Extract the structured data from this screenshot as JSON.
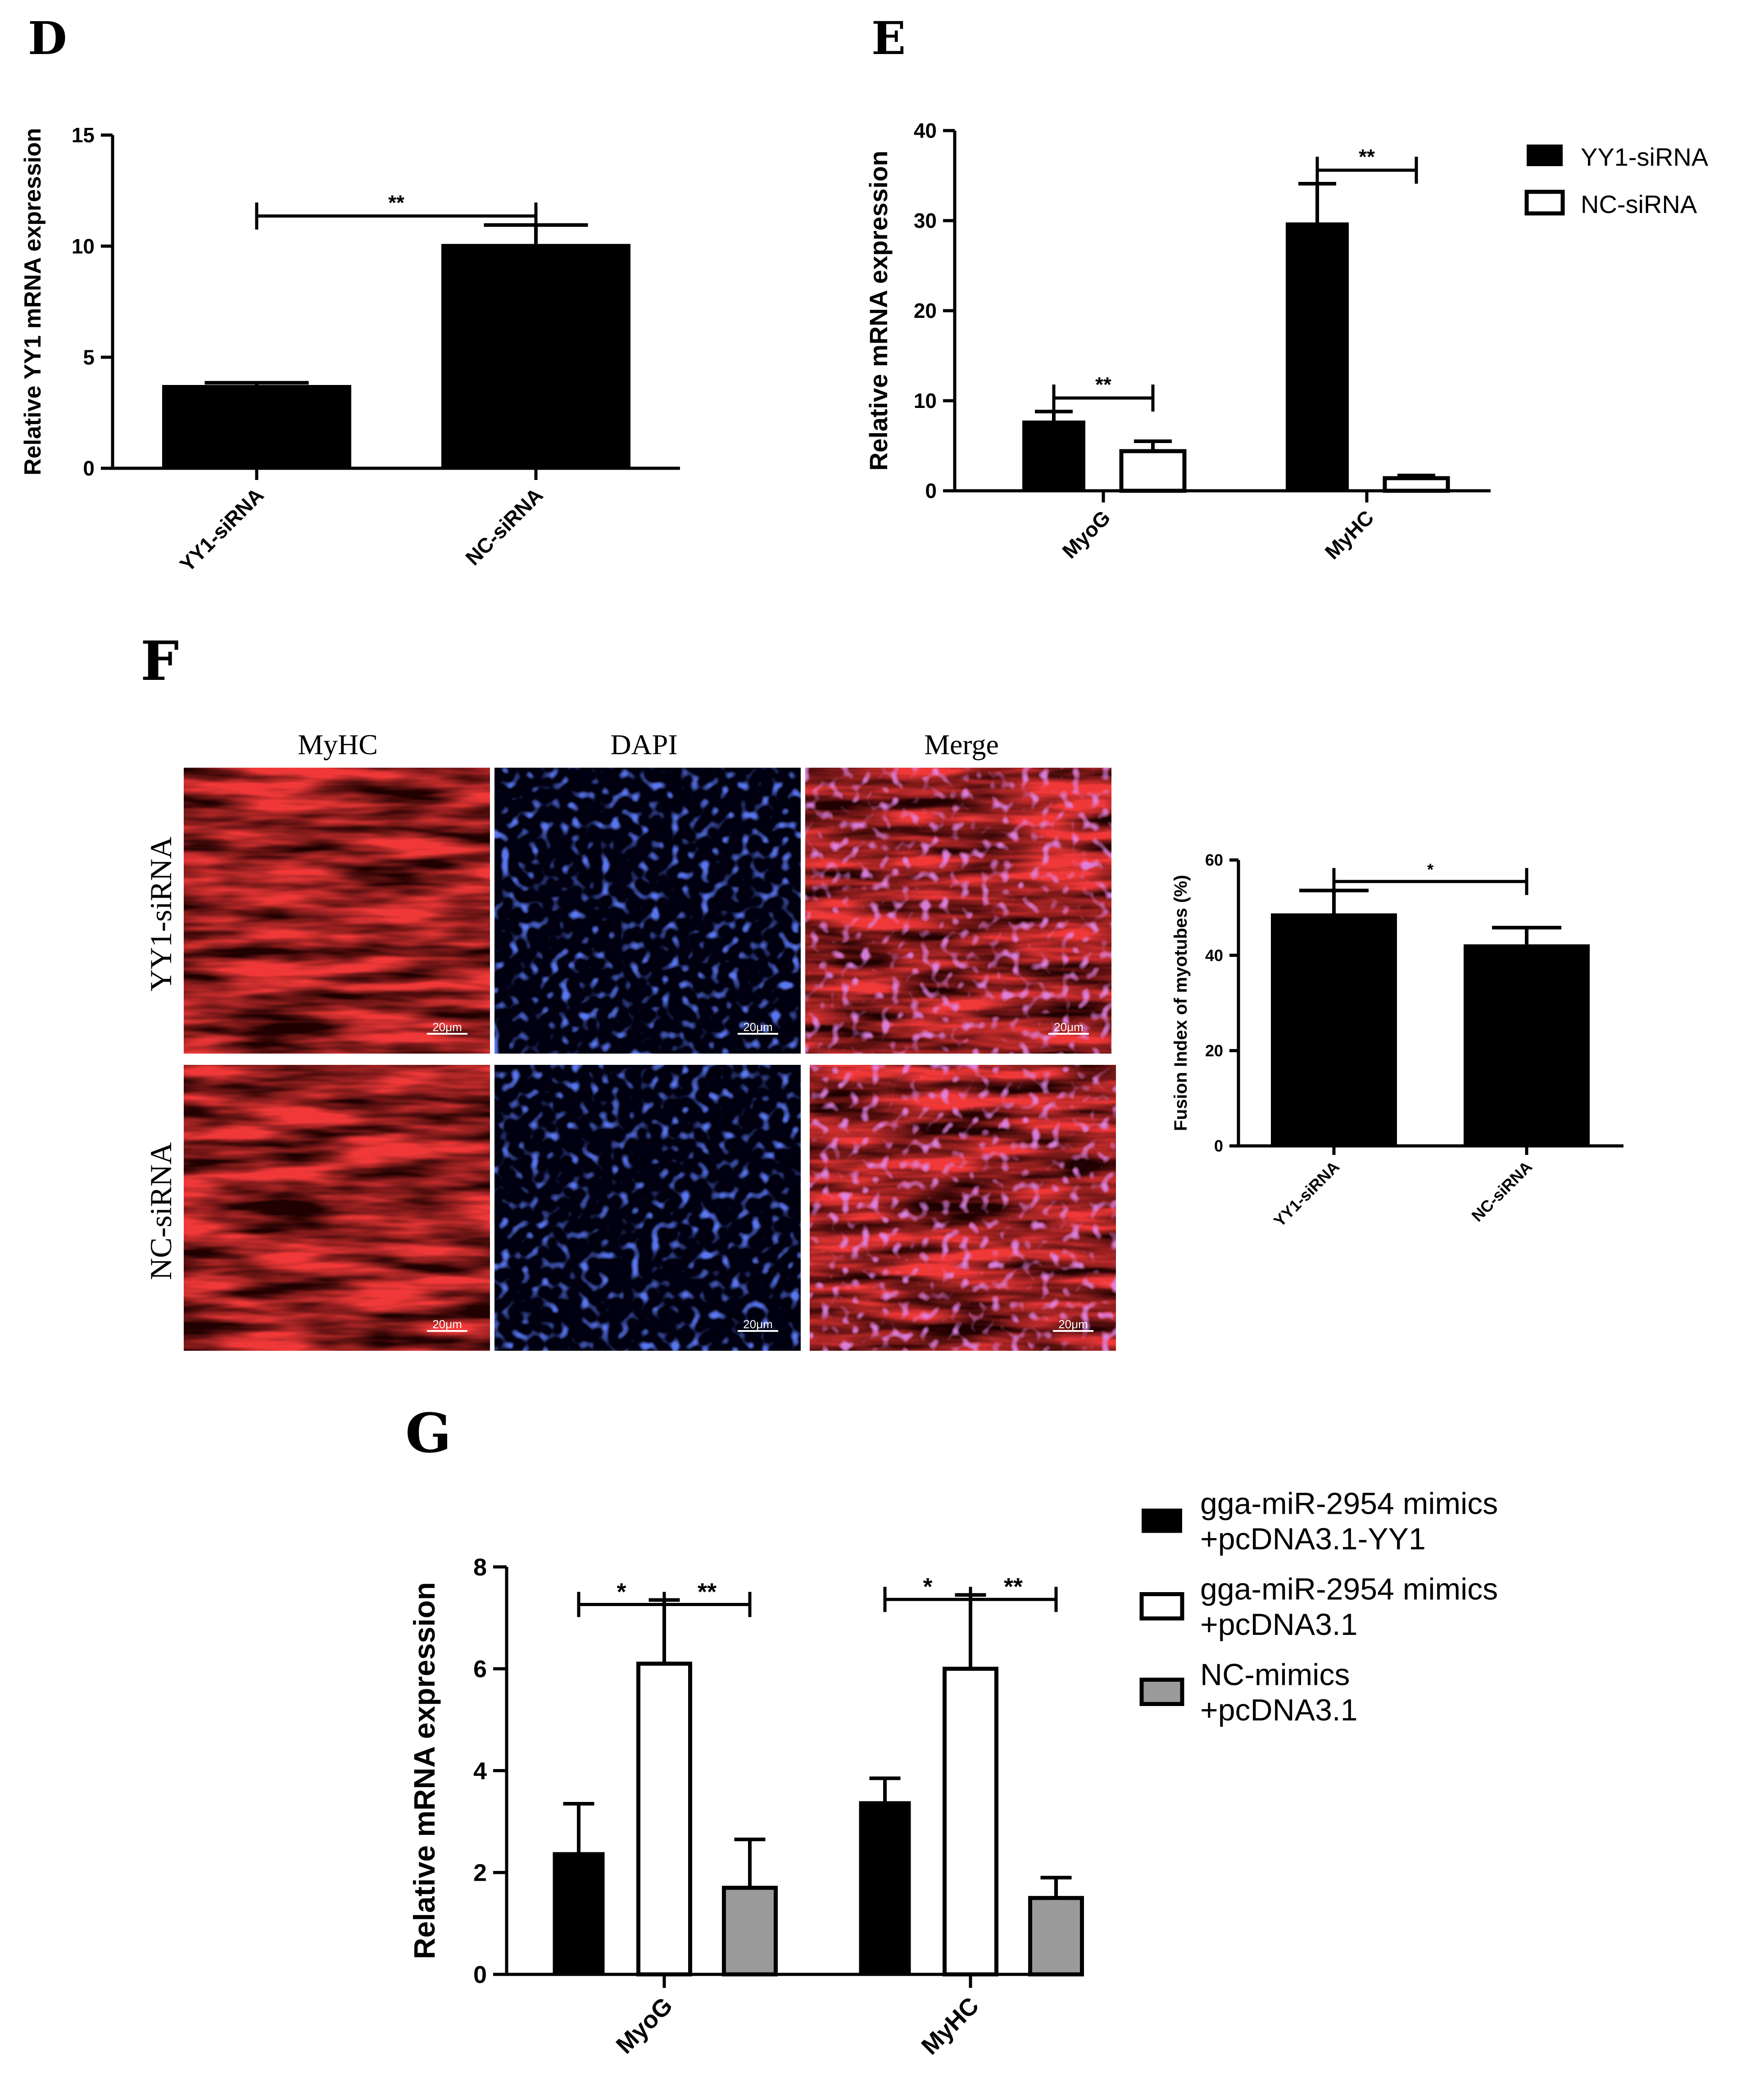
{
  "panels": {
    "D": {
      "letter": "D"
    },
    "E": {
      "letter": "E"
    },
    "F": {
      "letter": "F"
    },
    "G": {
      "letter": "G"
    }
  },
  "microscopy": {
    "column_headers": [
      "MyHC",
      "DAPI",
      "Merge"
    ],
    "row_labels": [
      "YY1-siRNA",
      "NC-siRNA"
    ],
    "scale_bar_label": "20μm",
    "colors": {
      "myhc": "#e01010",
      "dapi": "#1a2fd8",
      "merge": "#c8206a",
      "dark": "#200000"
    }
  },
  "chart_data": [
    {
      "panel": "D",
      "type": "bar",
      "categories": [
        "YY1-siRNA",
        "NC-siRNA"
      ],
      "values": [
        3.75,
        10.1
      ],
      "errors": [
        0.1,
        0.85
      ],
      "title": "",
      "xlabel": "",
      "ylabel": "Relative YY1 mRNA expression",
      "ylim": [
        0,
        15
      ],
      "yticks": [
        0,
        5,
        10,
        15
      ],
      "significance": [
        {
          "from": 0,
          "to": 1,
          "label": "**"
        }
      ]
    },
    {
      "panel": "E",
      "type": "bar",
      "categories": [
        "MyoG",
        "MyHC"
      ],
      "series": [
        {
          "name": "YY1-siRNA",
          "values": [
            7.8,
            29.8
          ],
          "errors": [
            1.0,
            4.3
          ],
          "color": "#000000"
        },
        {
          "name": "NC-siRNA",
          "values": [
            4.4,
            1.4
          ],
          "errors": [
            1.1,
            0.3
          ],
          "color": "#ffffff"
        }
      ],
      "title": "",
      "xlabel": "",
      "ylabel": "Relative mRNA expression",
      "ylim": [
        0,
        40
      ],
      "yticks": [
        0,
        10,
        20,
        30,
        40
      ],
      "legend": "top-right",
      "significance": [
        {
          "category": 0,
          "label": "**"
        },
        {
          "category": 1,
          "label": "**"
        }
      ]
    },
    {
      "panel": "F",
      "type": "bar",
      "categories": [
        "YY1-siRNA",
        "NC-siRNA"
      ],
      "values": [
        48.8,
        42.3
      ],
      "errors": [
        4.8,
        3.5
      ],
      "title": "",
      "xlabel": "",
      "ylabel": "Fusion Index of myotubes (%)",
      "ylim": [
        0,
        60
      ],
      "yticks": [
        0,
        20,
        40,
        60
      ],
      "significance": [
        {
          "from": 0,
          "to": 1,
          "label": "*"
        }
      ]
    },
    {
      "panel": "G",
      "type": "bar",
      "categories": [
        "MyoG",
        "MyHC"
      ],
      "series": [
        {
          "name": "gga-miR-2954 mimics\n+pcDNA3.1-YY1",
          "values": [
            2.4,
            3.4
          ],
          "errors": [
            0.95,
            0.45
          ],
          "color": "#000000"
        },
        {
          "name": "gga-miR-2954 mimics\n+pcDNA3.1",
          "values": [
            6.1,
            6.0
          ],
          "errors": [
            1.25,
            1.45
          ],
          "color": "#ffffff"
        },
        {
          "name": "NC-mimics\n+pcDNA3.1",
          "values": [
            1.7,
            1.5
          ],
          "errors": [
            0.95,
            0.4
          ],
          "color": "#9a9a9a"
        }
      ],
      "title": "",
      "xlabel": "",
      "ylabel": "Relative mRNA expression",
      "ylim": [
        0,
        8
      ],
      "yticks": [
        0,
        2,
        4,
        6,
        8
      ],
      "legend": "top-right",
      "significance": [
        {
          "category": 0,
          "left_label": "*",
          "right_label": "**"
        },
        {
          "category": 1,
          "left_label": "*",
          "right_label": "**"
        }
      ]
    }
  ]
}
